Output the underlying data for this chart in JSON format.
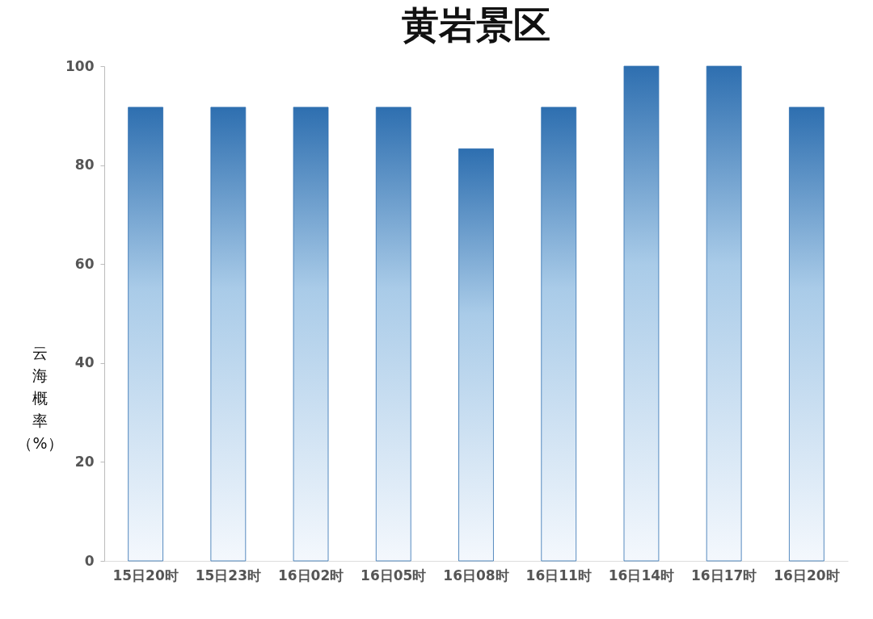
{
  "chart_data": {
    "type": "bar",
    "title": "黄岩景区",
    "ylabel": "云海概率（%）",
    "categories": [
      "15日20时",
      "15日23时",
      "16日02时",
      "16日05时",
      "16日08时",
      "16日11时",
      "16日14时",
      "16日17时",
      "16日20时"
    ],
    "values": [
      91.7,
      91.7,
      91.7,
      91.7,
      83.3,
      91.7,
      100,
      100,
      91.7
    ],
    "color": "#2e6fb0",
    "ylim": [
      0,
      100
    ],
    "yticks": [
      0,
      20,
      40,
      60,
      80,
      100
    ],
    "grid": false,
    "legend": false
  }
}
